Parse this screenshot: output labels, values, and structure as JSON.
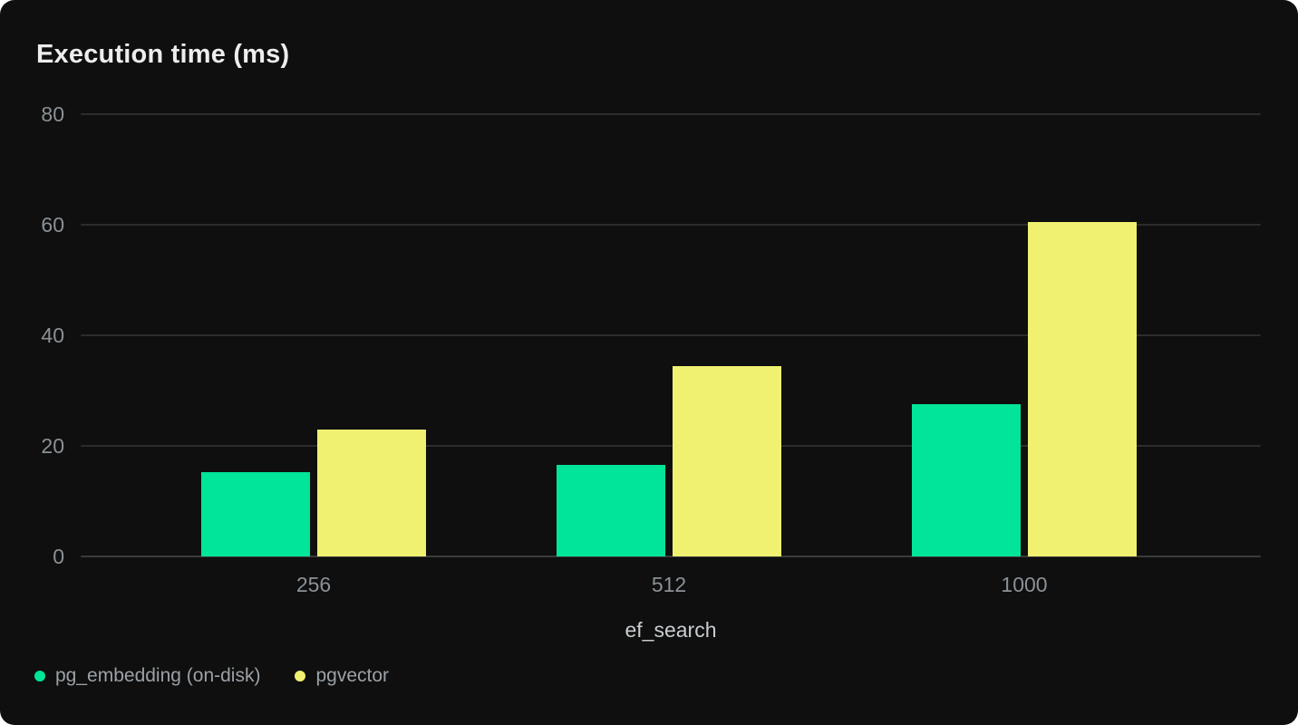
{
  "card": {
    "title": "Execution time (ms)"
  },
  "chart_data": {
    "type": "bar",
    "title": "Execution time (ms)",
    "xlabel": "ef_search",
    "ylabel": "",
    "categories": [
      "256",
      "512",
      "1000"
    ],
    "series": [
      {
        "name": "pg_embedding (on-disk)",
        "color": "#00e599",
        "values": [
          15.2,
          16.5,
          27.5
        ]
      },
      {
        "name": "pgvector",
        "color": "#f0f171",
        "values": [
          23.0,
          34.5,
          60.5
        ]
      }
    ],
    "ylim": [
      0,
      80
    ],
    "yticks": [
      0,
      20,
      40,
      60,
      80
    ],
    "grid": true,
    "legend_position": "bottom-left"
  },
  "colors": {
    "card_background": "#0e0f0e",
    "page_background": "#ffffff",
    "gridline": "#2c2c2c",
    "zero_line": "#3a3a3a",
    "title_text": "#ededed",
    "tick_text": "#8b9197",
    "x_axis_label_text": "#c9cdd1",
    "legend_text": "#9ba1a8"
  }
}
